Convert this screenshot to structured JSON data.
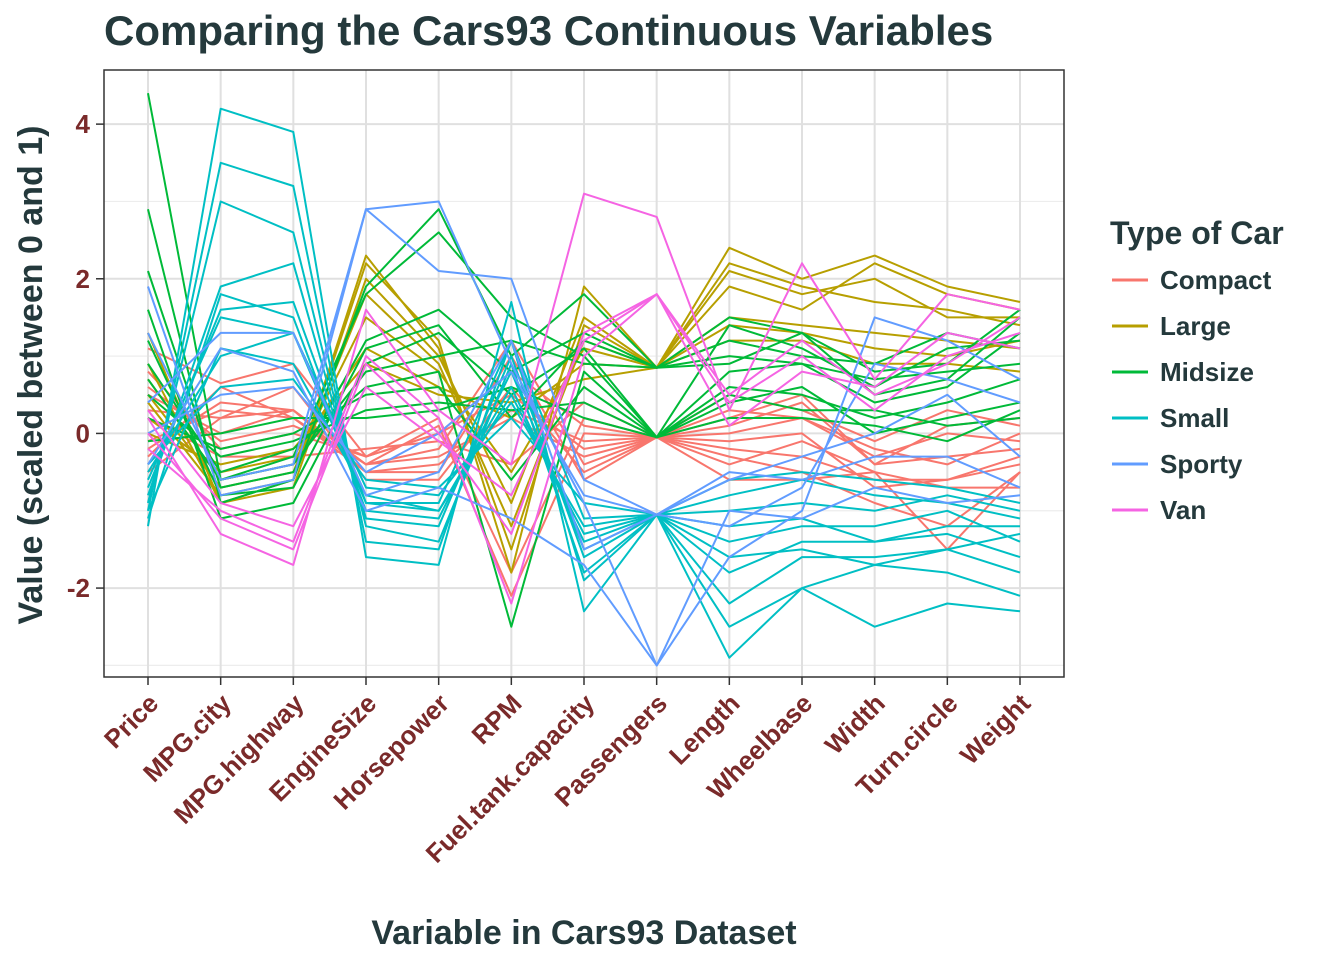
{
  "chart_data": {
    "type": "line",
    "subtype": "parallel-coordinates",
    "title": "Comparing the Cars93 Continuous Variables",
    "xlabel": "Variable in Cars93 Dataset",
    "ylabel": "Value (scaled between 0 and 1)",
    "ylim": [
      -3.15,
      4.7
    ],
    "y_ticks": [
      -2,
      0,
      2,
      4
    ],
    "grid": true,
    "legend_position": "right",
    "categories": [
      "Price",
      "MPG.city",
      "MPG.highway",
      "EngineSize",
      "Horsepower",
      "RPM",
      "Fuel.tank.capacity",
      "Passengers",
      "Length",
      "Wheelbase",
      "Width",
      "Turn.circle",
      "Weight"
    ],
    "legend": {
      "title": "Type of Car",
      "items": [
        {
          "label": "Compact",
          "color": "#f8766d"
        },
        {
          "label": "Large",
          "color": "#b79f00"
        },
        {
          "label": "Midsize",
          "color": "#00ba38"
        },
        {
          "label": "Small",
          "color": "#00bfc4"
        },
        {
          "label": "Sporty",
          "color": "#619cff"
        },
        {
          "label": "Van",
          "color": "#f564e3"
        }
      ]
    },
    "series": [
      {
        "group": "Compact",
        "values": [
          1.1,
          0.65,
          0.9,
          -0.3,
          0.0,
          0.5,
          -0.2,
          -0.05,
          0.3,
          0.2,
          -0.3,
          0.0,
          -0.1
        ]
      },
      {
        "group": "Compact",
        "values": [
          0.3,
          0.2,
          0.3,
          -0.4,
          -0.2,
          1.2,
          -0.4,
          -0.05,
          -0.2,
          -0.3,
          -0.6,
          -0.6,
          -0.3
        ]
      },
      {
        "group": "Compact",
        "values": [
          -0.2,
          0.4,
          0.3,
          -0.5,
          -0.4,
          0.3,
          -0.1,
          -0.05,
          0.1,
          0.4,
          -0.4,
          -0.3,
          -0.2
        ]
      },
      {
        "group": "Compact",
        "values": [
          0.8,
          -0.2,
          0.0,
          -0.3,
          0.2,
          -1.8,
          0.2,
          -0.05,
          -0.3,
          -0.5,
          -0.9,
          -1.2,
          -0.5
        ]
      },
      {
        "group": "Compact",
        "values": [
          -0.5,
          0.2,
          0.6,
          -0.6,
          -0.6,
          0.6,
          -0.5,
          -0.05,
          -0.4,
          -0.1,
          -0.5,
          -0.7,
          -0.7
        ]
      },
      {
        "group": "Compact",
        "values": [
          0.2,
          -0.3,
          -0.3,
          -0.2,
          -0.1,
          -0.4,
          0.4,
          -0.05,
          0.5,
          0.3,
          -0.1,
          0.3,
          0.1
        ]
      },
      {
        "group": "Compact",
        "values": [
          -0.3,
          0.6,
          0.2,
          -0.5,
          -0.5,
          1.0,
          -0.6,
          -0.05,
          -0.6,
          -0.6,
          -0.5,
          -1.5,
          -0.5
        ]
      },
      {
        "group": "Compact",
        "values": [
          0.5,
          0.0,
          0.3,
          -0.4,
          0.1,
          -2.1,
          0.0,
          -0.05,
          0.0,
          0.2,
          -0.2,
          -0.4,
          0.0
        ]
      },
      {
        "group": "Compact",
        "values": [
          -0.1,
          0.3,
          0.2,
          -0.4,
          -0.3,
          0.2,
          -0.3,
          -0.05,
          -0.1,
          0.0,
          -0.7,
          -0.6,
          -0.4
        ]
      },
      {
        "group": "Compact",
        "values": [
          0.6,
          -0.1,
          0.1,
          -0.3,
          0.0,
          0.8,
          0.1,
          -0.05,
          0.2,
          0.5,
          -0.4,
          0.1,
          0.2
        ]
      },
      {
        "group": "Large",
        "values": [
          0.9,
          -0.9,
          -0.6,
          2.2,
          1.2,
          -1.8,
          1.9,
          0.85,
          2.4,
          2.0,
          2.3,
          1.9,
          1.7
        ]
      },
      {
        "group": "Large",
        "values": [
          0.5,
          -0.7,
          -0.5,
          1.8,
          0.9,
          -1.2,
          1.2,
          0.85,
          2.1,
          1.8,
          2.0,
          1.5,
          1.5
        ]
      },
      {
        "group": "Large",
        "values": [
          0.2,
          -0.5,
          -0.3,
          1.1,
          0.6,
          0.2,
          0.9,
          0.85,
          1.5,
          1.4,
          1.3,
          1.2,
          1.1
        ]
      },
      {
        "group": "Large",
        "values": [
          1.3,
          -0.9,
          -0.7,
          2.0,
          1.0,
          -0.9,
          1.5,
          0.85,
          1.9,
          1.6,
          2.2,
          1.8,
          1.6
        ]
      },
      {
        "group": "Large",
        "values": [
          0.0,
          -0.4,
          -0.2,
          0.9,
          0.5,
          0.4,
          0.7,
          0.85,
          1.2,
          1.2,
          0.9,
          0.9,
          0.8
        ]
      },
      {
        "group": "Large",
        "values": [
          0.7,
          -0.6,
          -0.4,
          1.5,
          0.8,
          -0.5,
          1.1,
          0.85,
          1.4,
          1.3,
          1.1,
          1.0,
          1.2
        ]
      },
      {
        "group": "Large",
        "values": [
          0.4,
          -0.8,
          -0.6,
          2.3,
          1.1,
          -1.5,
          1.4,
          0.85,
          2.2,
          1.9,
          1.7,
          1.6,
          1.4
        ]
      },
      {
        "group": "Midsize",
        "values": [
          4.4,
          -0.6,
          -0.3,
          1.8,
          2.6,
          1.5,
          1.0,
          -0.05,
          0.8,
          0.9,
          0.4,
          0.6,
          1.3
        ]
      },
      {
        "group": "Midsize",
        "values": [
          2.9,
          -0.9,
          -0.6,
          1.9,
          2.9,
          1.0,
          1.8,
          0.85,
          1.5,
          1.3,
          0.8,
          0.9,
          1.6
        ]
      },
      {
        "group": "Midsize",
        "values": [
          2.1,
          -0.7,
          -0.5,
          1.2,
          1.6,
          0.8,
          1.3,
          0.85,
          0.9,
          1.3,
          0.5,
          0.7,
          1.5
        ]
      },
      {
        "group": "Midsize",
        "values": [
          1.6,
          -1.1,
          -0.9,
          0.9,
          1.3,
          0.5,
          1.1,
          -0.05,
          1.4,
          1.1,
          0.6,
          1.1,
          1.2
        ]
      },
      {
        "group": "Midsize",
        "values": [
          0.9,
          -0.5,
          -0.2,
          0.6,
          0.8,
          -2.5,
          0.8,
          -0.05,
          0.6,
          0.5,
          0.2,
          0.4,
          0.7
        ]
      },
      {
        "group": "Midsize",
        "values": [
          0.5,
          -0.3,
          -0.1,
          0.3,
          0.4,
          0.3,
          0.4,
          -0.05,
          0.4,
          0.6,
          0.0,
          0.2,
          0.4
        ]
      },
      {
        "group": "Midsize",
        "values": [
          1.2,
          -0.8,
          -0.7,
          1.1,
          1.4,
          0.2,
          1.2,
          0.85,
          1.2,
          1.0,
          0.9,
          1.3,
          1.1
        ]
      },
      {
        "group": "Midsize",
        "values": [
          0.2,
          -0.2,
          0.0,
          0.5,
          0.6,
          -0.6,
          0.6,
          -0.05,
          0.2,
          0.2,
          0.1,
          -0.1,
          0.3
        ]
      },
      {
        "group": "Midsize",
        "values": [
          0.7,
          -0.6,
          -0.4,
          0.8,
          1.0,
          1.2,
          0.9,
          0.85,
          1.0,
          0.9,
          0.7,
          0.8,
          0.9
        ]
      },
      {
        "group": "Midsize",
        "values": [
          -0.1,
          0.0,
          0.2,
          0.2,
          0.3,
          0.6,
          0.2,
          -0.05,
          0.5,
          0.3,
          0.3,
          0.1,
          0.2
        ]
      },
      {
        "group": "Small",
        "values": [
          -1.2,
          4.2,
          3.9,
          -1.6,
          -1.7,
          1.7,
          -2.3,
          -1.05,
          -2.9,
          -2.0,
          -2.5,
          -2.2,
          -2.3
        ]
      },
      {
        "group": "Small",
        "values": [
          -1.0,
          3.5,
          3.2,
          -1.4,
          -1.5,
          1.2,
          -1.9,
          -1.05,
          -2.5,
          -2.0,
          -1.7,
          -1.8,
          -2.1
        ]
      },
      {
        "group": "Small",
        "values": [
          -0.9,
          3.0,
          2.6,
          -1.2,
          -1.4,
          0.9,
          -1.8,
          -1.05,
          -2.2,
          -1.6,
          -1.6,
          -1.5,
          -1.8
        ]
      },
      {
        "group": "Small",
        "values": [
          -0.8,
          1.9,
          2.2,
          -1.1,
          -1.2,
          1.0,
          -1.6,
          -1.05,
          -1.8,
          -1.4,
          -1.4,
          -1.3,
          -1.6
        ]
      },
      {
        "group": "Small",
        "values": [
          -0.7,
          1.6,
          1.7,
          -0.9,
          -1.0,
          0.6,
          -1.4,
          -1.05,
          -1.4,
          -1.2,
          -1.2,
          -1.0,
          -1.4
        ]
      },
      {
        "group": "Small",
        "values": [
          -1.1,
          1.8,
          1.5,
          -1.0,
          -1.1,
          0.8,
          -1.5,
          -1.05,
          -1.6,
          -1.5,
          -1.7,
          -1.5,
          -1.3
        ]
      },
      {
        "group": "Small",
        "values": [
          -0.5,
          1.0,
          1.3,
          -0.7,
          -0.8,
          0.4,
          -1.2,
          -1.05,
          -1.0,
          -0.9,
          -1.0,
          -0.8,
          -1.0
        ]
      },
      {
        "group": "Small",
        "values": [
          -0.6,
          1.5,
          1.3,
          -0.9,
          -0.9,
          1.2,
          -1.1,
          -1.05,
          -1.2,
          -1.1,
          -1.4,
          -1.2,
          -1.2
        ]
      },
      {
        "group": "Small",
        "values": [
          -1.0,
          1.1,
          0.9,
          -0.8,
          -1.0,
          0.5,
          -1.3,
          -1.05,
          -0.8,
          -0.6,
          -0.8,
          -0.9,
          -1.1
        ]
      },
      {
        "group": "Small",
        "values": [
          -0.4,
          0.6,
          0.7,
          -0.6,
          -0.7,
          0.2,
          -0.9,
          -1.05,
          -0.6,
          -0.5,
          -0.6,
          -0.7,
          -0.9
        ]
      },
      {
        "group": "Sporty",
        "values": [
          1.9,
          -0.8,
          -0.6,
          2.9,
          3.0,
          0.9,
          -0.9,
          -3.0,
          -1.6,
          -1.0,
          1.5,
          1.2,
          0.7
        ]
      },
      {
        "group": "Sporty",
        "values": [
          1.3,
          -0.6,
          -0.4,
          2.9,
          2.1,
          2.0,
          -0.6,
          -1.05,
          -1.2,
          -0.7,
          0.9,
          0.7,
          0.4
        ]
      },
      {
        "group": "Sporty",
        "values": [
          0.4,
          1.3,
          1.3,
          -0.8,
          -0.5,
          1.2,
          -1.5,
          -1.05,
          -0.5,
          -0.6,
          -0.3,
          -0.3,
          -0.7
        ]
      },
      {
        "group": "Sporty",
        "values": [
          0.0,
          0.5,
          0.6,
          -0.5,
          0.0,
          0.8,
          -0.8,
          -1.05,
          -0.6,
          -0.3,
          0.0,
          0.5,
          -0.3
        ]
      },
      {
        "group": "Sporty",
        "values": [
          -0.4,
          1.1,
          0.8,
          -1.0,
          -0.7,
          -1.1,
          -1.7,
          -3.0,
          -1.0,
          -1.1,
          -0.7,
          -0.9,
          -0.8
        ]
      },
      {
        "group": "Van",
        "values": [
          0.2,
          -1.3,
          -1.7,
          1.6,
          0.3,
          -0.4,
          3.1,
          2.8,
          0.3,
          2.2,
          0.7,
          1.8,
          1.6
        ]
      },
      {
        "group": "Van",
        "values": [
          0.0,
          -1.1,
          -1.5,
          0.9,
          0.0,
          -1.3,
          1.3,
          1.8,
          0.5,
          1.2,
          0.5,
          0.9,
          1.5
        ]
      },
      {
        "group": "Van",
        "values": [
          -0.2,
          -1.0,
          -1.4,
          1.0,
          0.2,
          -2.2,
          1.0,
          1.8,
          0.1,
          0.8,
          0.6,
          1.3,
          1.1
        ]
      },
      {
        "group": "Van",
        "values": [
          0.3,
          -0.9,
          -1.2,
          0.6,
          -0.1,
          -0.8,
          1.2,
          1.8,
          0.4,
          1.0,
          0.3,
          1.0,
          1.3
        ]
      }
    ]
  }
}
